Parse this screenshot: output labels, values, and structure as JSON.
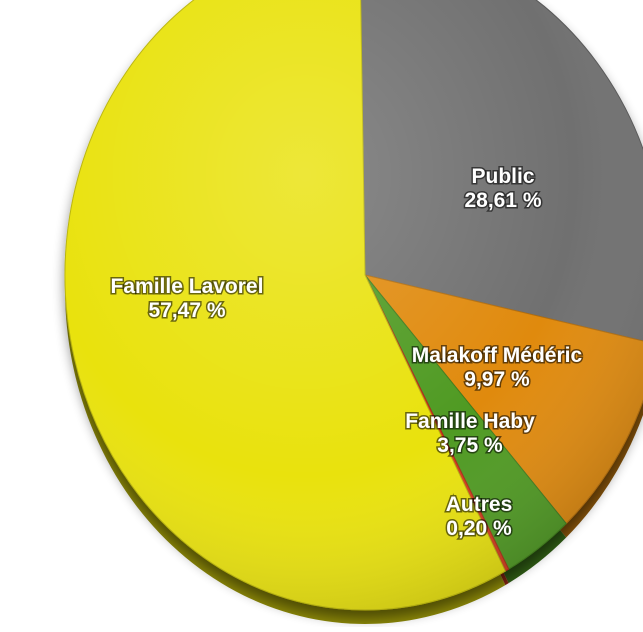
{
  "chart_data": {
    "type": "pie",
    "title": "",
    "slices": [
      {
        "label": "Public",
        "value": 28.61,
        "value_label": "28,61 %",
        "color": "#6f6f6f"
      },
      {
        "label": "Malakoff Médéric",
        "value": 9.97,
        "value_label": "9,97 %",
        "color": "#e08a10"
      },
      {
        "label": "Famille Haby",
        "value": 3.75,
        "value_label": "3,75 %",
        "color": "#4f9a22"
      },
      {
        "label": "Autres",
        "value": 0.2,
        "value_label": "0,20 %",
        "color": "#d23a1a"
      },
      {
        "label": "Famille Lavorel",
        "value": 57.47,
        "value_label": "57,47 %",
        "color": "#e9e20d"
      }
    ],
    "legend": "none",
    "style": "3d-shaded"
  }
}
